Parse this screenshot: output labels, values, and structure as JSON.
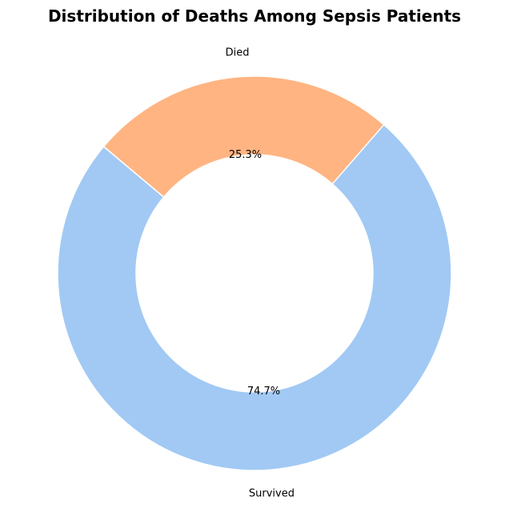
{
  "chart_data": {
    "type": "pie",
    "title": "Distribution of Deaths Among Sepsis Patients",
    "donut": true,
    "slices": [
      {
        "label": "Survived",
        "value": 74.7,
        "pct_label": "74.7%",
        "color": "#a1c9f4"
      },
      {
        "label": "Died",
        "value": 25.3,
        "pct_label": "25.3%",
        "color": "#ffb482"
      }
    ],
    "start_angle_deg": 140,
    "direction": "counterclockwise",
    "edge_color": "#ffffff"
  }
}
